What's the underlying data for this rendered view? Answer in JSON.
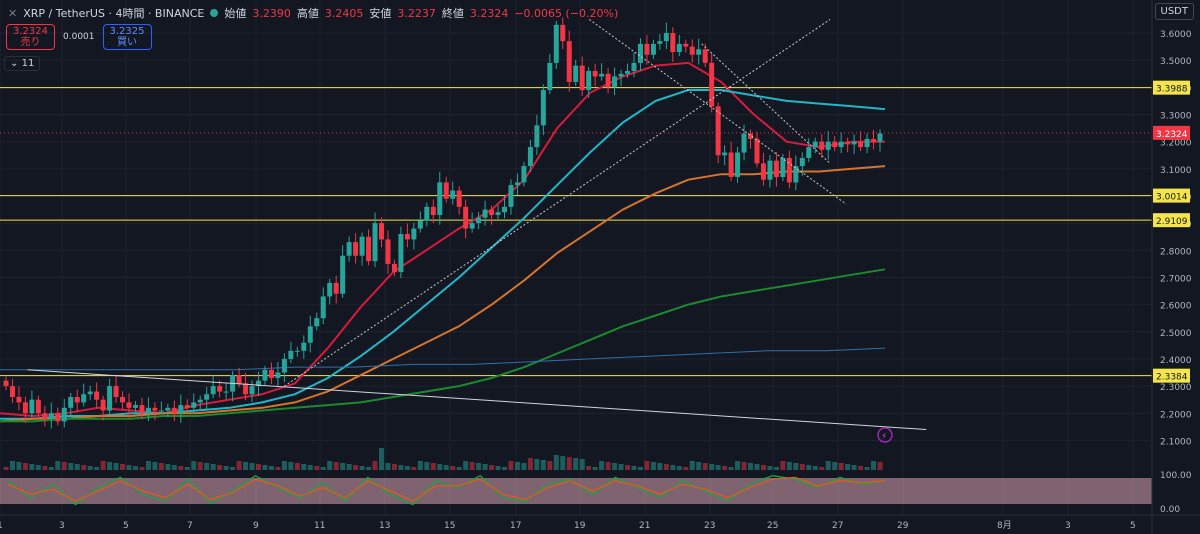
{
  "header": {
    "symbol": "XRP / TetherUS · 4時間 · BINANCE",
    "open_label": "始値",
    "open": "3.2390",
    "high_label": "高値",
    "high": "3.2405",
    "low_label": "安値",
    "low": "3.2237",
    "close_label": "終値",
    "close": "3.2324",
    "change": "−0.0065 (−0.20%)"
  },
  "trade": {
    "sell_price": "3.2324",
    "sell_label": "売り",
    "spread": "0.0001",
    "buy_price": "3.2325",
    "buy_label": "買い"
  },
  "indicators_toggle": "11",
  "currency": "USDT",
  "colors": {
    "up": "#26a69a",
    "down": "#f23645",
    "bg": "#131722",
    "ma_red": "#d81b3c",
    "ma_cyan": "#20b7c8",
    "ma_orange": "#d6742a",
    "ma_green": "#1b8a2e",
    "ma_blue": "#2f6fa8",
    "hline": "#f4e54a"
  },
  "chart_data": [
    {
      "type": "candlestick",
      "title": "",
      "y_axis_ticks": [
        "3.6000",
        "3.5000",
        "3.4000",
        "3.3000",
        "3.2000",
        "3.1000",
        "3.0000",
        "2.9000",
        "2.8000",
        "2.7000",
        "2.6000",
        "2.5000",
        "2.4000",
        "2.3000",
        "2.2000",
        "2.1000"
      ],
      "x_axis_ticks": [
        "1",
        "3",
        "5",
        "7",
        "9",
        "11",
        "13",
        "15",
        "17",
        "19",
        "21",
        "23",
        "25",
        "27",
        "29",
        "8月",
        "3",
        "5"
      ],
      "ylim": [
        2.05,
        3.67
      ],
      "horizontal_levels": [
        "3.3988",
        "3.0014",
        "2.9109",
        "2.3384"
      ],
      "last_price_label": "3.2324",
      "candle_closes": [
        2.3,
        2.26,
        2.24,
        2.2,
        2.25,
        2.2,
        2.18,
        2.2,
        2.17,
        2.22,
        2.26,
        2.24,
        2.27,
        2.28,
        2.25,
        2.21,
        2.3,
        2.26,
        2.24,
        2.22,
        2.23,
        2.2,
        2.22,
        2.21,
        2.21,
        2.22,
        2.2,
        2.23,
        2.22,
        2.24,
        2.25,
        2.27,
        2.3,
        2.28,
        2.28,
        2.34,
        2.31,
        2.27,
        2.3,
        2.32,
        2.36,
        2.33,
        2.35,
        2.4,
        2.43,
        2.43,
        2.46,
        2.52,
        2.55,
        2.63,
        2.68,
        2.64,
        2.78,
        2.83,
        2.78,
        2.85,
        2.76,
        2.9,
        2.84,
        2.75,
        2.72,
        2.86,
        2.84,
        2.88,
        2.91,
        2.96,
        2.93,
        3.05,
        2.99,
        3.02,
        2.96,
        2.88,
        2.9,
        2.92,
        2.95,
        2.93,
        2.94,
        2.96,
        3.04,
        3.05,
        3.11,
        3.18,
        3.26,
        3.39,
        3.49,
        3.63,
        3.57,
        3.42,
        3.48,
        3.39,
        3.46,
        3.44,
        3.45,
        3.4,
        3.44,
        3.45,
        3.46,
        3.49,
        3.56,
        3.52,
        3.56,
        3.57,
        3.6,
        3.53,
        3.56,
        3.55,
        3.52,
        3.54,
        3.49,
        3.33,
        3.15,
        3.16,
        3.07,
        3.16,
        3.23,
        3.21,
        3.12,
        3.06,
        3.13,
        3.07,
        3.14,
        3.05,
        3.11,
        3.14,
        3.18,
        3.2,
        3.17,
        3.2,
        3.18,
        3.2,
        3.19,
        3.2,
        3.18,
        3.21,
        3.2,
        3.23
      ],
      "series": [
        {
          "values": [
            2.2,
            2.19,
            2.2,
            2.22,
            2.21,
            2.2,
            2.23,
            2.25,
            2.27,
            2.31,
            2.44,
            2.59,
            2.72,
            2.8,
            2.88,
            2.95,
            3.06,
            3.25,
            3.38,
            3.44,
            3.48,
            3.49,
            3.42,
            3.3,
            3.2,
            3.18,
            3.2,
            3.2
          ]
        },
        {
          "values": [
            2.18,
            2.18,
            2.19,
            2.19,
            2.2,
            2.2,
            2.21,
            2.22,
            2.24,
            2.27,
            2.33,
            2.41,
            2.5,
            2.6,
            2.7,
            2.81,
            2.92,
            3.04,
            3.16,
            3.27,
            3.35,
            3.39,
            3.39,
            3.37,
            3.35,
            3.34,
            3.33,
            3.32
          ]
        },
        {
          "values": [
            2.17,
            2.18,
            2.18,
            2.19,
            2.19,
            2.2,
            2.2,
            2.21,
            2.22,
            2.24,
            2.28,
            2.34,
            2.4,
            2.46,
            2.52,
            2.6,
            2.69,
            2.79,
            2.87,
            2.95,
            3.01,
            3.06,
            3.08,
            3.08,
            3.09,
            3.09,
            3.1,
            3.11
          ]
        },
        {
          "values": [
            2.17,
            2.17,
            2.18,
            2.18,
            2.18,
            2.19,
            2.19,
            2.2,
            2.21,
            2.22,
            2.23,
            2.24,
            2.26,
            2.28,
            2.3,
            2.33,
            2.37,
            2.42,
            2.47,
            2.52,
            2.56,
            2.6,
            2.63,
            2.65,
            2.67,
            2.69,
            2.71,
            2.73
          ]
        },
        {
          "values": [
            2.36,
            2.36,
            2.36,
            2.36,
            2.36,
            2.37,
            2.37,
            2.38,
            2.38,
            2.39,
            2.4,
            2.41,
            2.42,
            2.43,
            2.43,
            2.44
          ]
        }
      ],
      "trendlines": [
        {
          "from": [
            1,
            2.36
          ],
          "to": [
            29,
            2.14
          ]
        },
        {
          "from": [
            9,
            2.3
          ],
          "to": [
            26,
            3.65
          ]
        },
        {
          "from": [
            18.5,
            3.65
          ],
          "to": [
            26.5,
            2.97
          ]
        },
        {
          "from": [
            22,
            3.56
          ],
          "to": [
            26,
            3.12
          ]
        }
      ]
    },
    {
      "type": "bar",
      "title": "",
      "note": "volume histogram below price"
    },
    {
      "type": "line",
      "title": "",
      "y_axis_ticks": [
        "100.00",
        "0.00"
      ],
      "ylim": [
        0,
        100
      ],
      "series": [
        {
          "values": [
            80,
            30,
            70,
            10,
            60,
            90,
            40,
            20,
            85,
            15,
            50,
            95,
            60,
            30,
            75,
            20,
            90,
            40,
            10,
            80,
            60,
            95,
            30,
            20,
            70,
            85,
            40,
            90,
            60,
            30,
            80,
            50,
            20,
            70,
            95,
            85,
            60,
            90,
            70,
            80
          ]
        },
        {
          "values": [
            70,
            40,
            55,
            20,
            50,
            80,
            50,
            30,
            70,
            25,
            45,
            85,
            65,
            35,
            60,
            30,
            80,
            50,
            20,
            65,
            65,
            85,
            40,
            25,
            60,
            80,
            50,
            80,
            65,
            40,
            70,
            55,
            30,
            60,
            85,
            90,
            65,
            80,
            75,
            80
          ]
        }
      ]
    }
  ]
}
